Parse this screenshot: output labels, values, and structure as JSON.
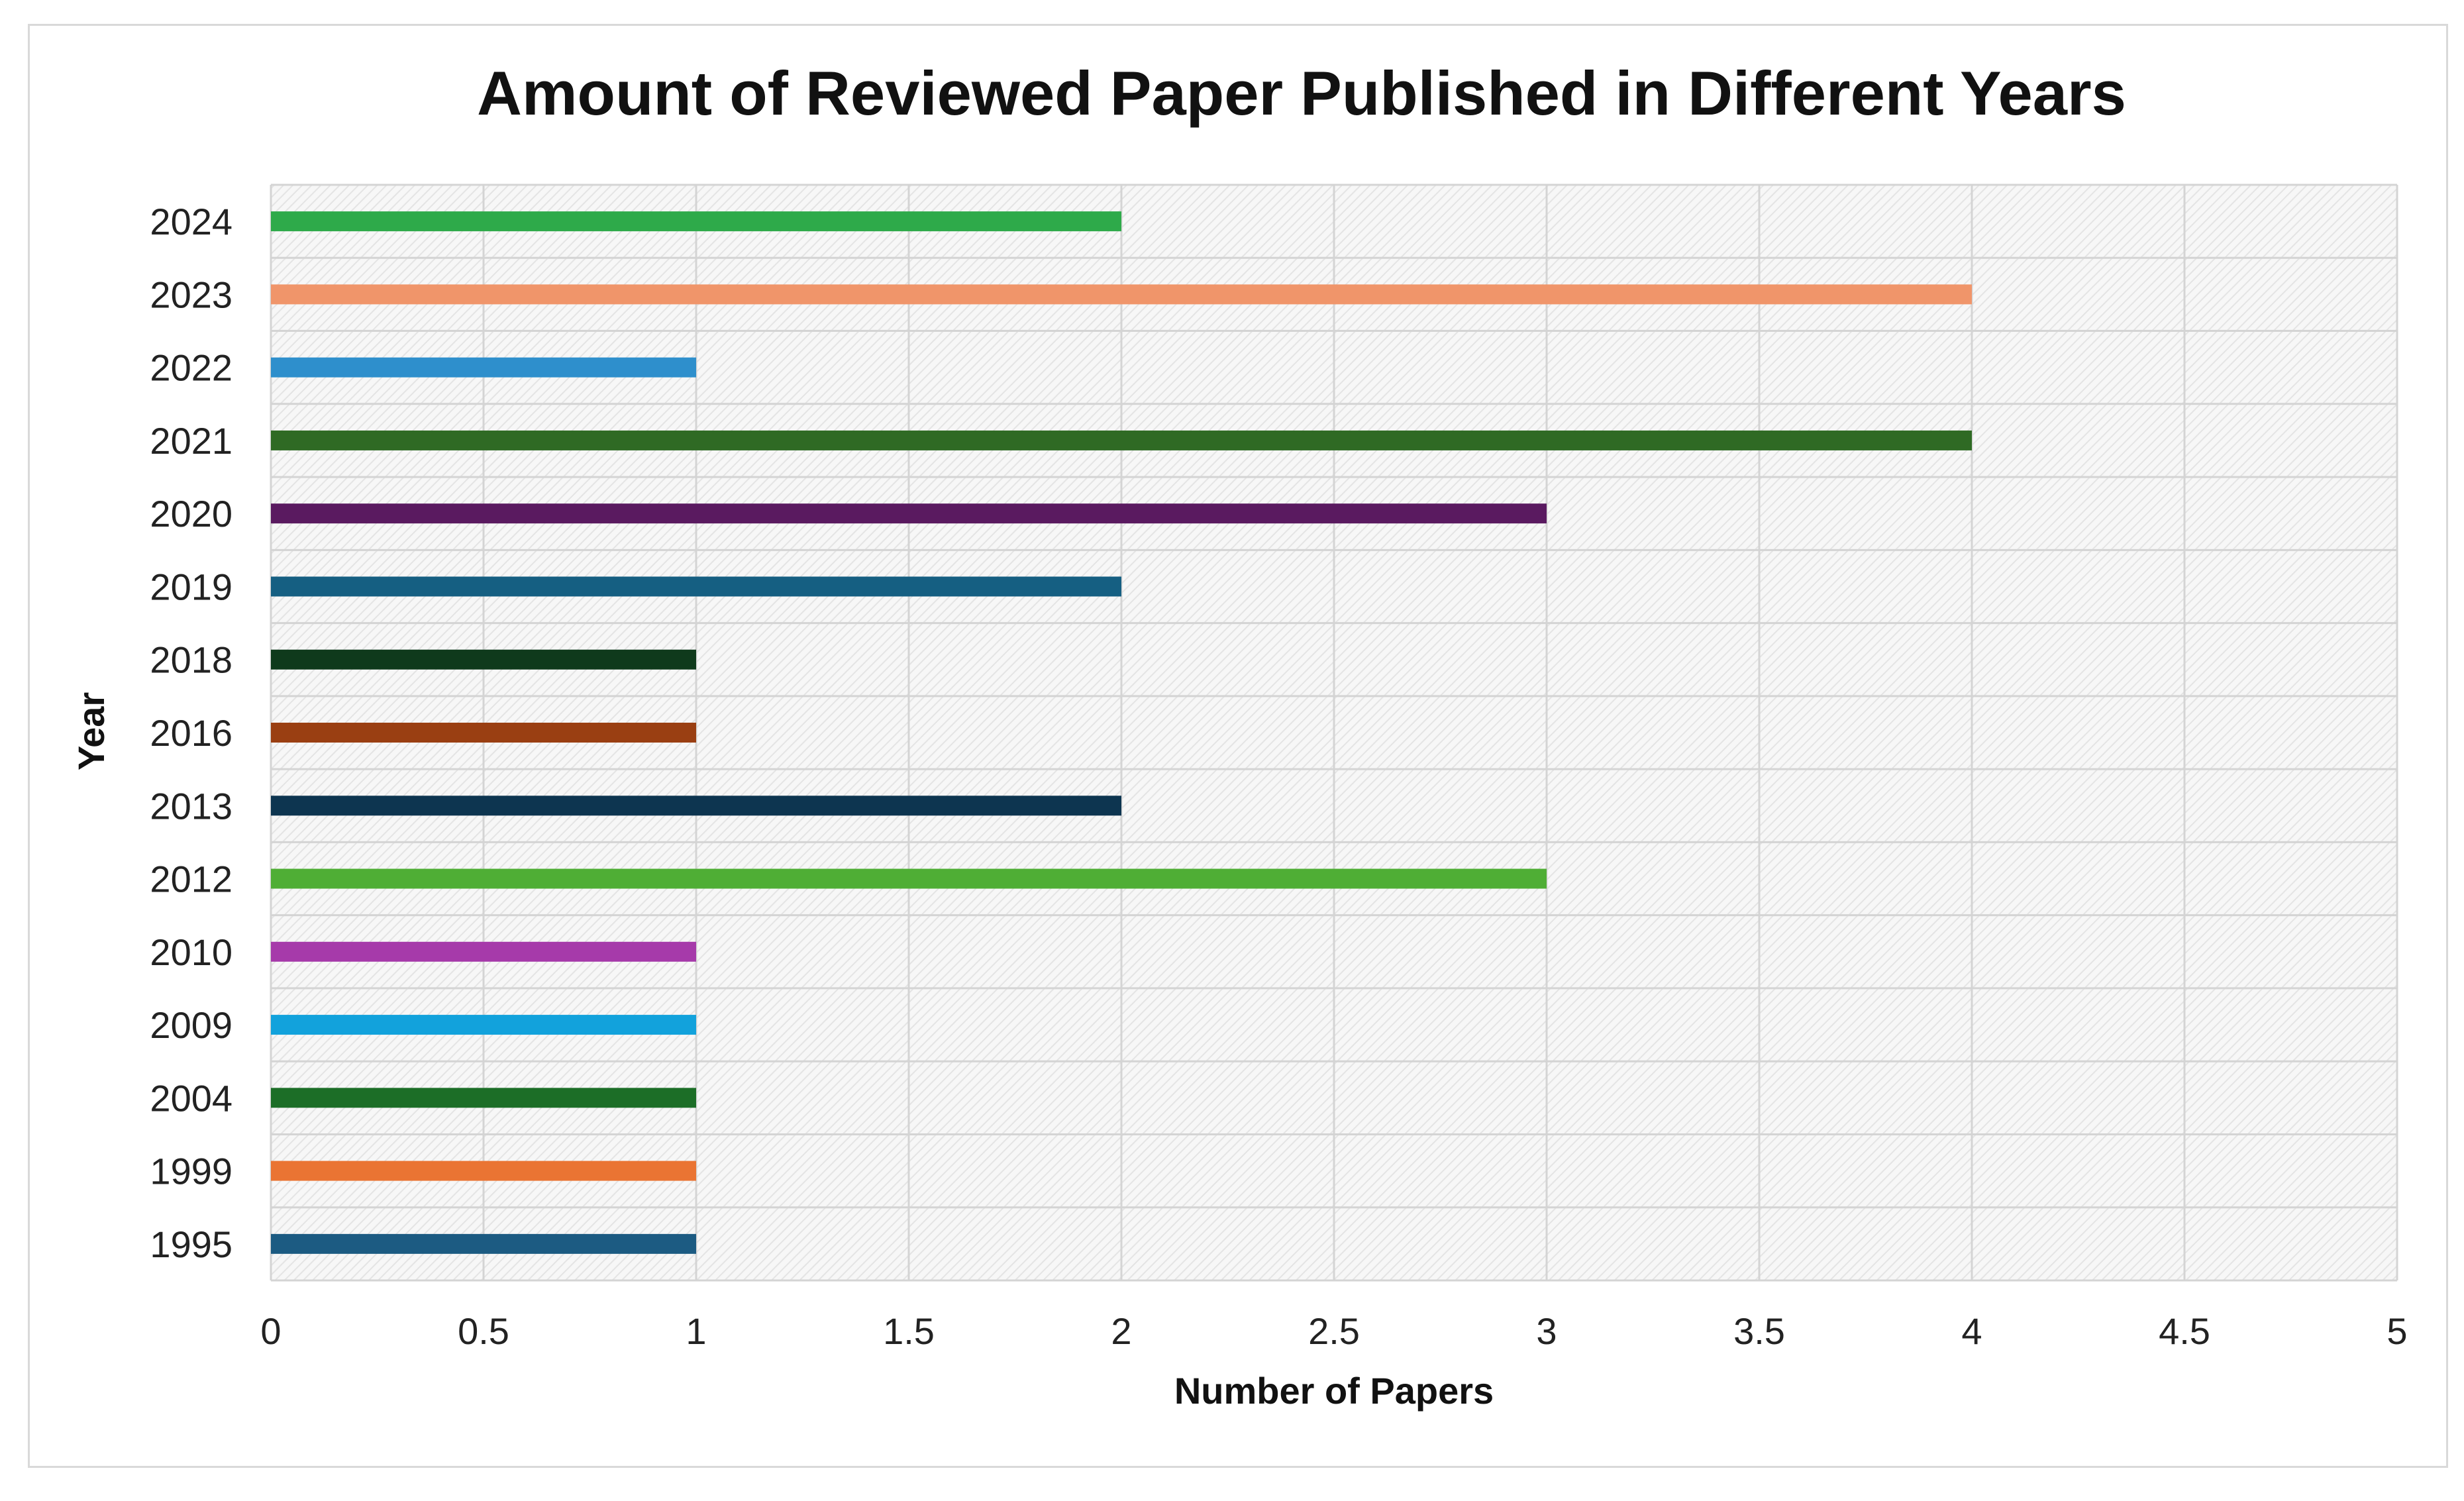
{
  "chart_data": {
    "type": "bar",
    "orientation": "horizontal",
    "title": "Amount of Reviewed Paper Published in Different Years",
    "xlabel": "Number of Papers",
    "ylabel": "Year",
    "xlim": [
      0,
      5
    ],
    "x_ticks": [
      "0",
      "0.5",
      "1",
      "1.5",
      "2",
      "2.5",
      "3",
      "3.5",
      "4",
      "4.5",
      "5"
    ],
    "grid": true,
    "legend": "none",
    "categories": [
      "2024",
      "2023",
      "2022",
      "2021",
      "2020",
      "2019",
      "2018",
      "2016",
      "2013",
      "2012",
      "2010",
      "2009",
      "2004",
      "1999",
      "1995"
    ],
    "values": [
      2,
      4,
      1,
      4,
      3,
      2,
      1,
      1,
      2,
      3,
      1,
      1,
      1,
      1,
      1
    ],
    "colors": [
      "#2eaa4a",
      "#f0956a",
      "#2e8fcc",
      "#2f6a24",
      "#5a1a60",
      "#155f82",
      "#0f3a1c",
      "#9a3f12",
      "#0d3550",
      "#4fae35",
      "#a63aaa",
      "#12a2dc",
      "#1c6e27",
      "#ea7433",
      "#1c5b82"
    ]
  }
}
